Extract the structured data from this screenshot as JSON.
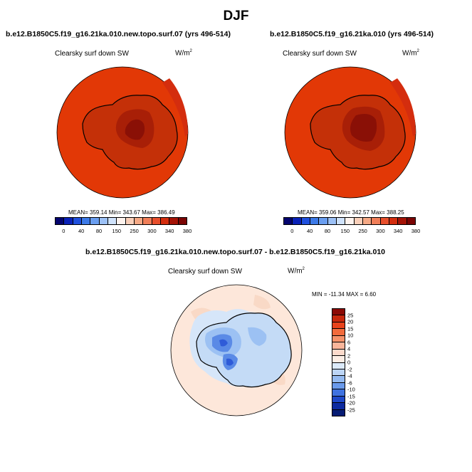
{
  "title": "DJF",
  "panels": [
    {
      "case": "b.e12.B1850C5.f19_g16.21ka.010.new.topo.surf.07 (yrs 496-514)",
      "variable": "Clearsky surf down SW",
      "units_base": "W/m",
      "units_exp": "2",
      "stats": "MEAN= 359.14  Min= 343.67  Max= 386.49"
    },
    {
      "case": "b.e12.B1850C5.f19_g16.21ka.010 (yrs 496-514)",
      "variable": "Clearsky surf down SW",
      "units_base": "W/m",
      "units_exp": "2",
      "stats": "MEAN= 359.06  Min= 342.57  Max= 388.25"
    }
  ],
  "diff_panel": {
    "case": "b.e12.B1850C5.f19_g16.21ka.010.new.topo.surf.07 - b.e12.B1850C5.f19_g16.21ka.010",
    "variable": "Clearsky surf down SW",
    "units_base": "W/m",
    "units_exp": "2",
    "stats": "MIN = -11.34  MAX =   6.60"
  },
  "colorbar": {
    "labels": [
      "0",
      "40",
      "80",
      "150",
      "250",
      "300",
      "340",
      "380"
    ],
    "colors": [
      "#04046e",
      "#0a22b8",
      "#1f50de",
      "#3d7ae8",
      "#6a9ef0",
      "#9cc1f6",
      "#cfe2fb",
      "#fef3ee",
      "#f9cfb9",
      "#f5a985",
      "#f07e58",
      "#e84f2c",
      "#d42d0e",
      "#a41306",
      "#7a0403"
    ]
  },
  "diff_colorbar": {
    "labels": [
      "25",
      "20",
      "15",
      "10",
      "6",
      "4",
      "2",
      "0",
      "-2",
      "-4",
      "-6",
      "-10",
      "-15",
      "-20",
      "-25"
    ],
    "colors": [
      "#8b0a05",
      "#c8280c",
      "#e8431c",
      "#f26b3c",
      "#f6926a",
      "#f9b59a",
      "#fcdacb",
      "#fdeee5",
      "#dceafa",
      "#bcd5f6",
      "#94baf1",
      "#6a9aeb",
      "#3f72e0",
      "#1e48c8",
      "#0d2ba0",
      "#061c74"
    ]
  },
  "map_colors": {
    "ocean": "#e23806",
    "ocean_edge": "#d42d0e",
    "ice_outer": "#c43008",
    "ice_inner": "#a81f07",
    "ice_core": "#8a1006",
    "diff_background": "#fde7da",
    "diff_light_blue": "#d6e6f9",
    "diff_mid_blue": "#9cc1f3",
    "diff_dark_blue": "#5a8ae6",
    "diff_deep_blue": "#2f5bd8"
  }
}
